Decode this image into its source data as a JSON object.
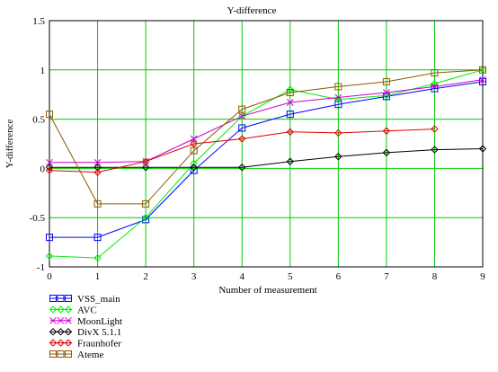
{
  "chart_data": {
    "type": "line",
    "title": "Y-difference",
    "xlabel": "Number of measurement",
    "ylabel": "Y-difference",
    "xlim": [
      0,
      9
    ],
    "ylim": [
      -1,
      1.5
    ],
    "xticks": [
      0,
      1,
      2,
      3,
      4,
      5,
      6,
      7,
      8,
      9
    ],
    "yticks": [
      -1,
      -0.5,
      0,
      0.5,
      1,
      1.5
    ],
    "ytick_labels": [
      "-1",
      "-0.5",
      "0",
      "0.5",
      "1",
      "1.5"
    ],
    "grid": true,
    "grid_color": "#00cc00",
    "legend_position": "bottom-left",
    "series": [
      {
        "name": "VSS_main",
        "color": "#0000ff",
        "marker": "square",
        "x": [
          0,
          1,
          2,
          3,
          4,
          5,
          6,
          7,
          8,
          9
        ],
        "values": [
          -0.7,
          -0.7,
          -0.52,
          -0.02,
          0.41,
          0.55,
          0.65,
          0.73,
          0.81,
          0.88
        ]
      },
      {
        "name": "AVC",
        "color": "#00ee00",
        "marker": "diamond",
        "x": [
          0,
          1,
          2,
          3,
          4,
          5,
          6,
          7,
          8,
          9
        ],
        "values": [
          -0.89,
          -0.91,
          -0.5,
          0.05,
          0.53,
          0.8,
          0.7,
          0.74,
          0.86,
          1.0
        ]
      },
      {
        "name": "MoonLight",
        "color": "#cc00cc",
        "marker": "x",
        "x": [
          0,
          1,
          2,
          3,
          4,
          5,
          6,
          7,
          8,
          9
        ],
        "values": [
          0.06,
          0.06,
          0.07,
          0.3,
          0.53,
          0.67,
          0.72,
          0.77,
          0.83,
          0.9
        ]
      },
      {
        "name": "DivX 5.1.1",
        "color": "#000000",
        "marker": "diamond",
        "x": [
          0,
          1,
          2,
          3,
          4,
          5,
          6,
          7,
          8,
          9
        ],
        "values": [
          0.01,
          0.01,
          0.01,
          0.01,
          0.01,
          0.07,
          0.12,
          0.16,
          0.19,
          0.2
        ]
      },
      {
        "name": "Fraunhofer",
        "color": "#dd0000",
        "marker": "diamond",
        "x": [
          0,
          1,
          2,
          3,
          4,
          5,
          6,
          7,
          8
        ],
        "values": [
          -0.02,
          -0.04,
          0.07,
          0.25,
          0.3,
          0.37,
          0.36,
          0.38,
          0.4
        ]
      },
      {
        "name": "Ateme",
        "color": "#8b5a00",
        "marker": "square",
        "x": [
          0,
          1,
          2,
          3,
          4,
          5,
          6,
          7,
          8,
          9
        ],
        "values": [
          0.55,
          -0.36,
          -0.36,
          0.18,
          0.6,
          0.77,
          0.83,
          0.88,
          0.97,
          1.0
        ]
      }
    ]
  }
}
